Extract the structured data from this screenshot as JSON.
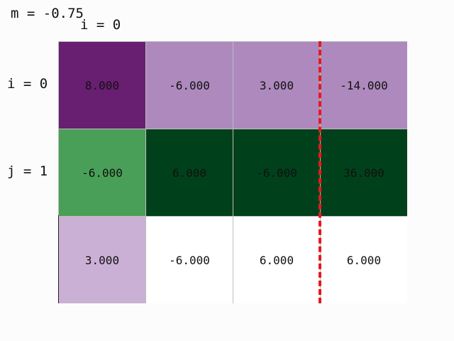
{
  "labels": {
    "m": "m = -0.75",
    "top_i": "i = 0",
    "row_labels": [
      "i = 0",
      "j = 1"
    ]
  },
  "matrix": [
    [
      "8.000",
      "-6.000",
      "3.000",
      "-14.000"
    ],
    [
      "-6.000",
      "6.000",
      "-6.000",
      "36.000"
    ],
    [
      "3.000",
      "-6.000",
      "6.000",
      "6.000"
    ]
  ],
  "cell_colors": [
    [
      "#681e71",
      "#ae89bd",
      "#ae89bd",
      "#ae89bd"
    ],
    [
      "#4a9f58",
      "#00411b",
      "#00411b",
      "#00411b"
    ],
    [
      "#cbb0d6",
      "#ffffff",
      "#ffffff",
      "#ffffff"
    ]
  ],
  "marker_color": "#e31a1c"
}
